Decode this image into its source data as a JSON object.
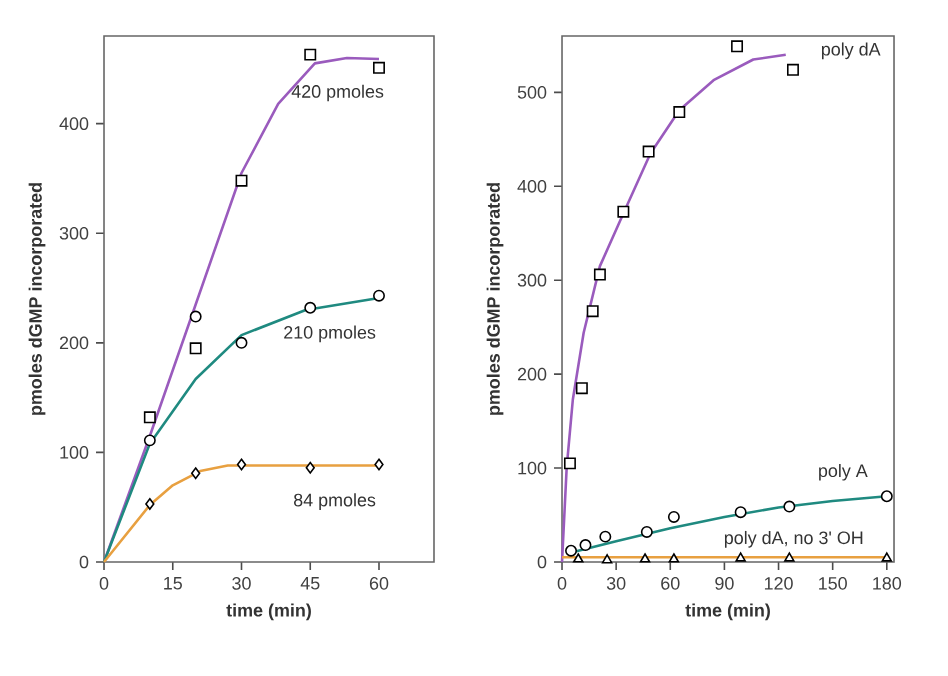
{
  "chart_data": [
    {
      "type": "line",
      "xlabel": "time (min)",
      "ylabel": "pmoles dGMP incorporated",
      "xlim": [
        0,
        72
      ],
      "ylim": [
        0,
        480
      ],
      "xticks": [
        0,
        15,
        30,
        45,
        60
      ],
      "yticks": [
        0,
        100,
        200,
        300,
        400
      ],
      "grid": false,
      "legend": false,
      "series": [
        {
          "name": "420 pmoles",
          "color": "#9a5bbd",
          "marker": "none",
          "x": [
            0,
            10,
            20,
            30,
            38,
            46,
            53,
            60
          ],
          "values": [
            0,
            115,
            235,
            355,
            418,
            455,
            460,
            459
          ]
        },
        {
          "name": "210 pmoles",
          "color": "#1f8a80",
          "marker": "none",
          "x": [
            0,
            10,
            20,
            30,
            44,
            60
          ],
          "values": [
            0,
            108,
            167,
            207,
            230,
            241
          ]
        },
        {
          "name": "84 pmoles",
          "color": "#e8a040",
          "marker": "none",
          "x": [
            0,
            10,
            15,
            21,
            27,
            60
          ],
          "values": [
            0,
            52,
            70,
            83,
            88,
            88
          ]
        },
        {
          "type": "scatter",
          "color": "#000000",
          "marker": "square",
          "x": [
            10,
            20,
            30,
            45,
            60
          ],
          "values": [
            132,
            195,
            348,
            463,
            451
          ]
        },
        {
          "type": "scatter",
          "color": "#000000",
          "marker": "circle",
          "x": [
            10,
            20,
            30,
            45,
            60
          ],
          "values": [
            111,
            224,
            200,
            232,
            243
          ]
        },
        {
          "type": "scatter",
          "color": "#000000",
          "marker": "diamond",
          "x": [
            10,
            20,
            30,
            45,
            60
          ],
          "values": [
            53,
            81,
            89,
            86,
            89
          ]
        }
      ]
    },
    {
      "type": "line",
      "xlabel": "time (min)",
      "ylabel": "pmoles dGMP incorporated",
      "xlim": [
        0,
        184
      ],
      "ylim": [
        0,
        560
      ],
      "xticks": [
        0,
        30,
        60,
        90,
        120,
        150,
        180
      ],
      "yticks": [
        0,
        100,
        200,
        300,
        400,
        500
      ],
      "grid": false,
      "legend": false,
      "series": [
        {
          "name": "poly dA",
          "color": "#9a5bbd",
          "marker": "none",
          "x": [
            0,
            2.6,
            6,
            12,
            21,
            34,
            49,
            65,
            84,
            106,
            124
          ],
          "values": [
            0,
            101,
            173,
            244,
            315,
            371,
            435,
            481,
            513,
            535,
            540
          ]
        },
        {
          "name": "poly A",
          "color": "#1f8a80",
          "marker": "none",
          "x": [
            3,
            30,
            60,
            90,
            120,
            150,
            180
          ],
          "values": [
            9,
            22,
            36,
            48,
            58,
            65,
            70
          ]
        },
        {
          "name": "poly dA, no 3' OH",
          "color": "#e8a040",
          "marker": "none",
          "x": [
            0,
            180
          ],
          "values": [
            5,
            5
          ]
        },
        {
          "type": "scatter",
          "color": "#000000",
          "marker": "square",
          "x": [
            4.4,
            11,
            17,
            21,
            34,
            48,
            65,
            97,
            128
          ],
          "values": [
            105,
            185,
            267,
            306,
            373,
            437,
            479,
            549,
            524
          ]
        },
        {
          "type": "scatter",
          "color": "#000000",
          "marker": "circle",
          "x": [
            5,
            13,
            24,
            47,
            62,
            99,
            126,
            180
          ],
          "values": [
            12,
            18,
            27,
            32,
            48,
            53,
            59,
            70
          ]
        },
        {
          "type": "scatter",
          "color": "#000000",
          "marker": "triangle",
          "x": [
            9,
            25,
            46,
            62,
            99,
            126,
            180
          ],
          "values": [
            3,
            2,
            3,
            3,
            4,
            4,
            4
          ]
        }
      ]
    }
  ]
}
